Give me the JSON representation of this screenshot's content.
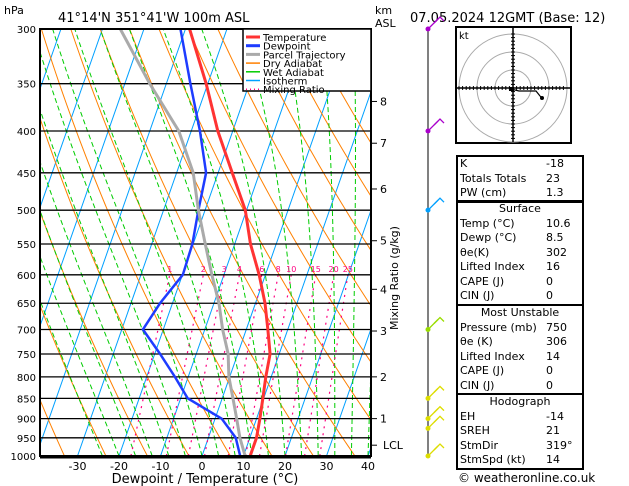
{
  "header": {
    "pressure_unit": "hPa",
    "location": "41°14'N  351°41'W  100m  ASL",
    "height_unit_1": "km",
    "height_unit_2": "ASL",
    "date": "07.05.2024  12GMT  (Base: 12)"
  },
  "chart_data": {
    "type": "line",
    "title": "Skew-T log-P sounding",
    "xlabel": "Dewpoint / Temperature (°C)",
    "ylabel": "hPa",
    "right_label": "Mixing Ratio (g/kg)",
    "x_ticks": [
      -30,
      -20,
      -10,
      0,
      10,
      20,
      30,
      40
    ],
    "pressure_levels": [
      300,
      350,
      400,
      450,
      500,
      550,
      600,
      650,
      700,
      750,
      800,
      850,
      900,
      950,
      1000
    ],
    "xlim": [
      -40,
      40
    ],
    "ylim": [
      1000,
      300
    ],
    "km_ticks": [
      {
        "label": "8",
        "p": 368
      },
      {
        "label": "7",
        "p": 414
      },
      {
        "label": "6",
        "p": 471
      },
      {
        "label": "5",
        "p": 545
      },
      {
        "label": "4",
        "p": 625
      },
      {
        "label": "3",
        "p": 703
      },
      {
        "label": "2",
        "p": 800
      },
      {
        "label": "1",
        "p": 900
      },
      {
        "label": "LCL",
        "p": 970
      }
    ],
    "mixing_ratio_labels": [
      1,
      2,
      3,
      4,
      6,
      8,
      10,
      15,
      20,
      25
    ],
    "legend": [
      {
        "name": "Temperature",
        "color": "#ff3333"
      },
      {
        "name": "Dewpoint",
        "color": "#1e3cff"
      },
      {
        "name": "Parcel Trajectory",
        "color": "#aaaaaa"
      },
      {
        "name": "Dry Adiabat",
        "color": "#ff8000"
      },
      {
        "name": "Wet Adiabat",
        "color": "#00cc00"
      },
      {
        "name": "Isotherm",
        "color": "#00a0ff"
      },
      {
        "name": "Mixing Ratio",
        "color": "#ff0080"
      }
    ],
    "series": [
      {
        "name": "Temperature",
        "p": [
          1000,
          950,
          900,
          850,
          800,
          750,
          700,
          650,
          600,
          550,
          500,
          450,
          400,
          350,
          300
        ],
        "t": [
          11.6,
          11.6,
          10.8,
          9.8,
          8.7,
          7.8,
          5.2,
          2.3,
          -1.5,
          -6.2,
          -10.3,
          -16.6,
          -23.6,
          -30.4,
          -39
        ]
      },
      {
        "name": "Dewpoint",
        "p": [
          1000,
          950,
          900,
          850,
          800,
          750,
          700,
          650,
          600,
          550,
          500,
          450,
          400,
          350,
          300
        ],
        "t": [
          9.2,
          6.6,
          1.6,
          -8.3,
          -13.2,
          -18.7,
          -24.9,
          -23,
          -19.9,
          -20.2,
          -21.6,
          -22.9,
          -27.9,
          -34.2,
          -41.2
        ]
      },
      {
        "name": "Parcel Trajectory",
        "p": [
          1000,
          950,
          900,
          850,
          800,
          750,
          700,
          650,
          600,
          550,
          500,
          450,
          400,
          350,
          300
        ],
        "t": [
          10.4,
          7.6,
          5.2,
          2.6,
          -0.2,
          -2.3,
          -5.7,
          -8.8,
          -12.9,
          -17.1,
          -21.6,
          -26,
          -33,
          -44,
          -55.7
        ]
      }
    ],
    "wind_barbs": [
      {
        "p": 300,
        "color": "#aa00cc"
      },
      {
        "p": 400,
        "color": "#aa00cc"
      },
      {
        "p": 500,
        "color": "#00a0ff"
      },
      {
        "p": 700,
        "color": "#99dd00"
      },
      {
        "p": 850,
        "color": "#dddd00"
      },
      {
        "p": 900,
        "color": "#dddd00"
      },
      {
        "p": 925,
        "color": "#dddd00"
      },
      {
        "p": 1000,
        "color": "#dddd00"
      }
    ]
  },
  "hodograph": {
    "unit": "kt"
  },
  "indices": [
    {
      "label": "K",
      "value": "-18"
    },
    {
      "label": "Totals Totals",
      "value": "23"
    },
    {
      "label": "PW (cm)",
      "value": "1.3"
    }
  ],
  "surface": {
    "title": "Surface",
    "rows": [
      {
        "label": "Temp (°C)",
        "value": "10.6"
      },
      {
        "label": "Dewp (°C)",
        "value": "8.5"
      },
      {
        "label": "θe(K)",
        "value": "302"
      },
      {
        "label": "Lifted Index",
        "value": "16"
      },
      {
        "label": "CAPE (J)",
        "value": "0"
      },
      {
        "label": "CIN (J)",
        "value": "0"
      }
    ]
  },
  "most_unstable": {
    "title": "Most Unstable",
    "rows": [
      {
        "label": "Pressure (mb)",
        "value": "750"
      },
      {
        "label": "θe (K)",
        "value": "306"
      },
      {
        "label": "Lifted Index",
        "value": "14"
      },
      {
        "label": "CAPE (J)",
        "value": "0"
      },
      {
        "label": "CIN (J)",
        "value": "0"
      }
    ]
  },
  "hodo_stats": {
    "title": "Hodograph",
    "rows": [
      {
        "label": "EH",
        "value": "-14"
      },
      {
        "label": "SREH",
        "value": "21"
      },
      {
        "label": "StmDir",
        "value": "319°"
      },
      {
        "label": "StmSpd (kt)",
        "value": "14"
      }
    ]
  },
  "copyright": "© weatheronline.co.uk"
}
